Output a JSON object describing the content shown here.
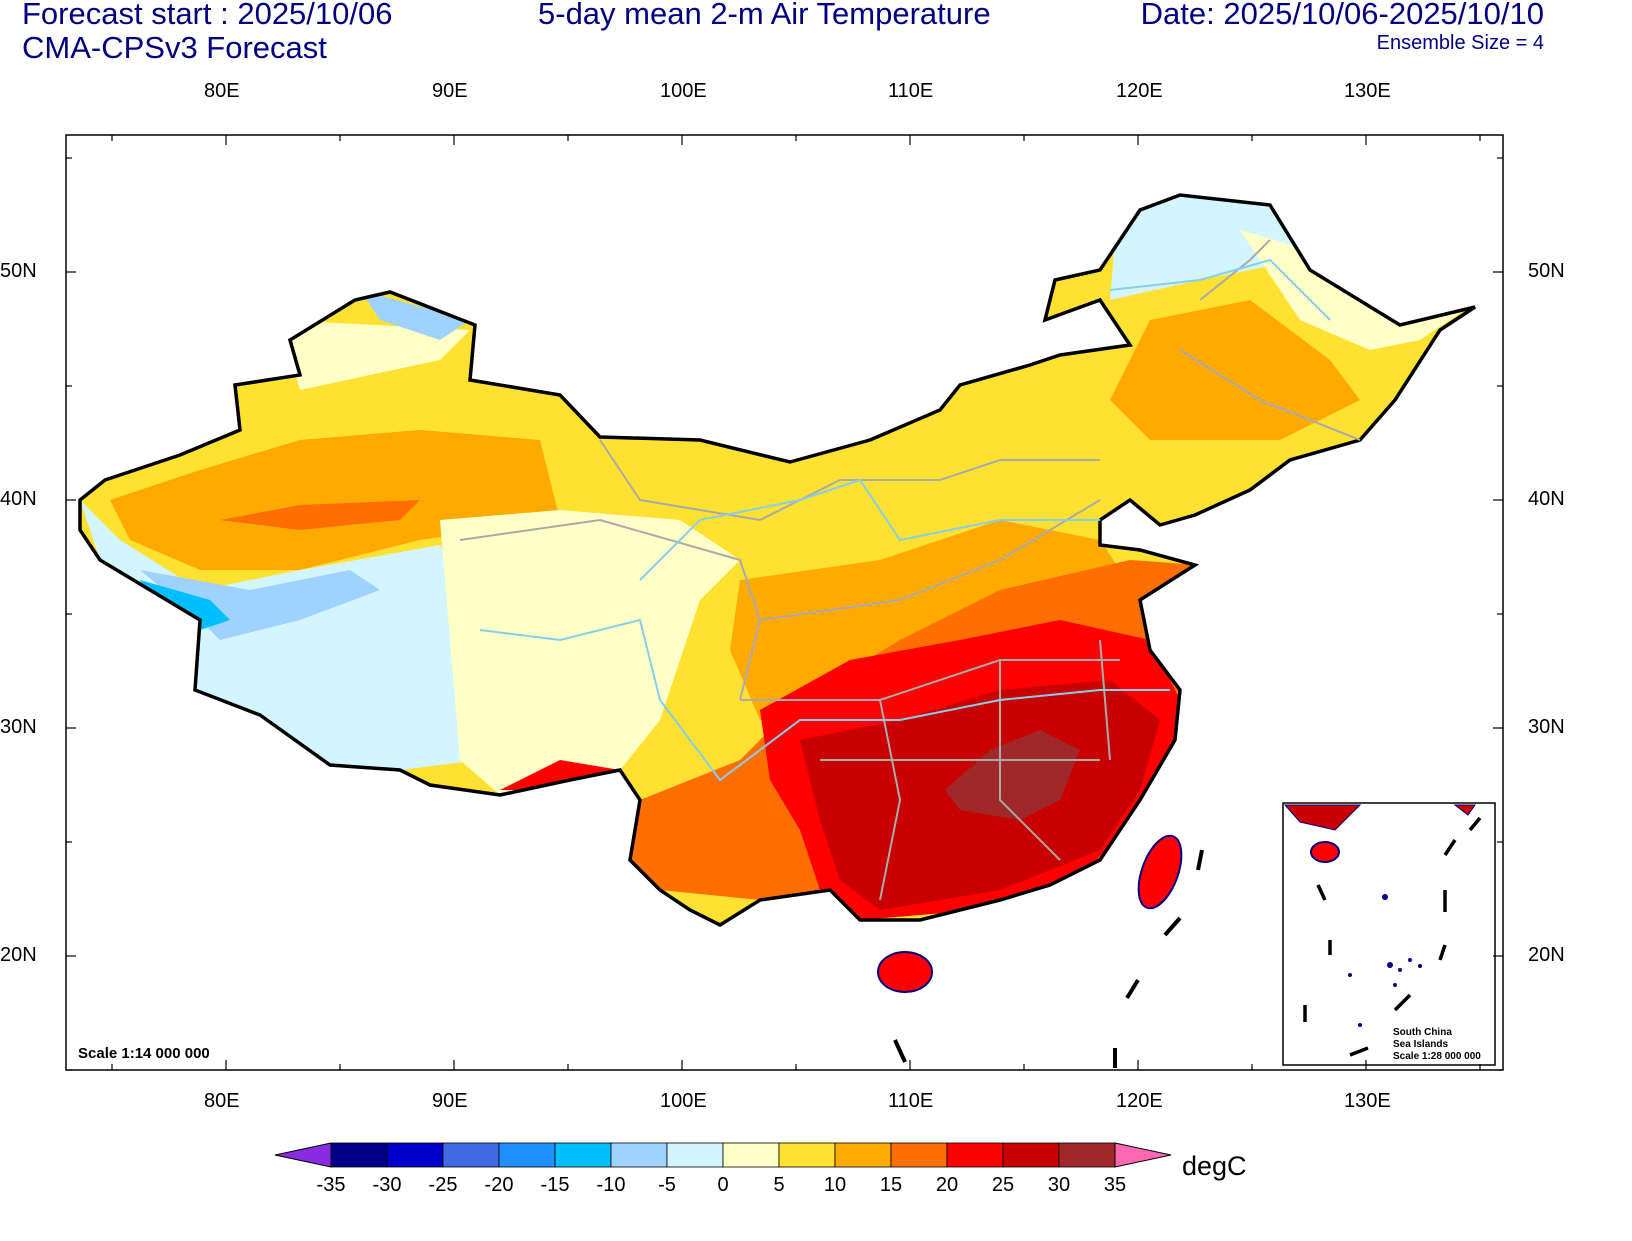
{
  "header": {
    "forecast_start": "Forecast start : 2025/10/06",
    "model": "CMA-CPSv3 Forecast",
    "title": "5-day mean 2-m Air Temperature",
    "date": "Date: 2025/10/06-2025/10/10",
    "ensemble": "Ensemble Size = 4"
  },
  "axes": {
    "lon_labels": [
      "80E",
      "90E",
      "100E",
      "110E",
      "120E",
      "130E"
    ],
    "lat_labels": [
      "50N",
      "40N",
      "30N",
      "20N"
    ]
  },
  "map": {
    "scale": "Scale 1:14 000 000",
    "inset": {
      "line1": "South China",
      "line2": "Sea Islands",
      "line3": "Scale 1:28 000 000"
    }
  },
  "colorbar": {
    "unit": "degC",
    "labels": [
      "-35",
      "-30",
      "-25",
      "-20",
      "-15",
      "-10",
      "-5",
      "0",
      "5",
      "10",
      "15",
      "20",
      "25",
      "30",
      "35"
    ],
    "colors": [
      "#8a2be2",
      "#00008b",
      "#0000cd",
      "#4169e1",
      "#1e90ff",
      "#00bfff",
      "#a0d2ff",
      "#d2f5ff",
      "#ffffc8",
      "#ffe132",
      "#ffaa00",
      "#ff6e00",
      "#ff0000",
      "#c80000",
      "#a02828",
      "#ff69b4"
    ]
  }
}
